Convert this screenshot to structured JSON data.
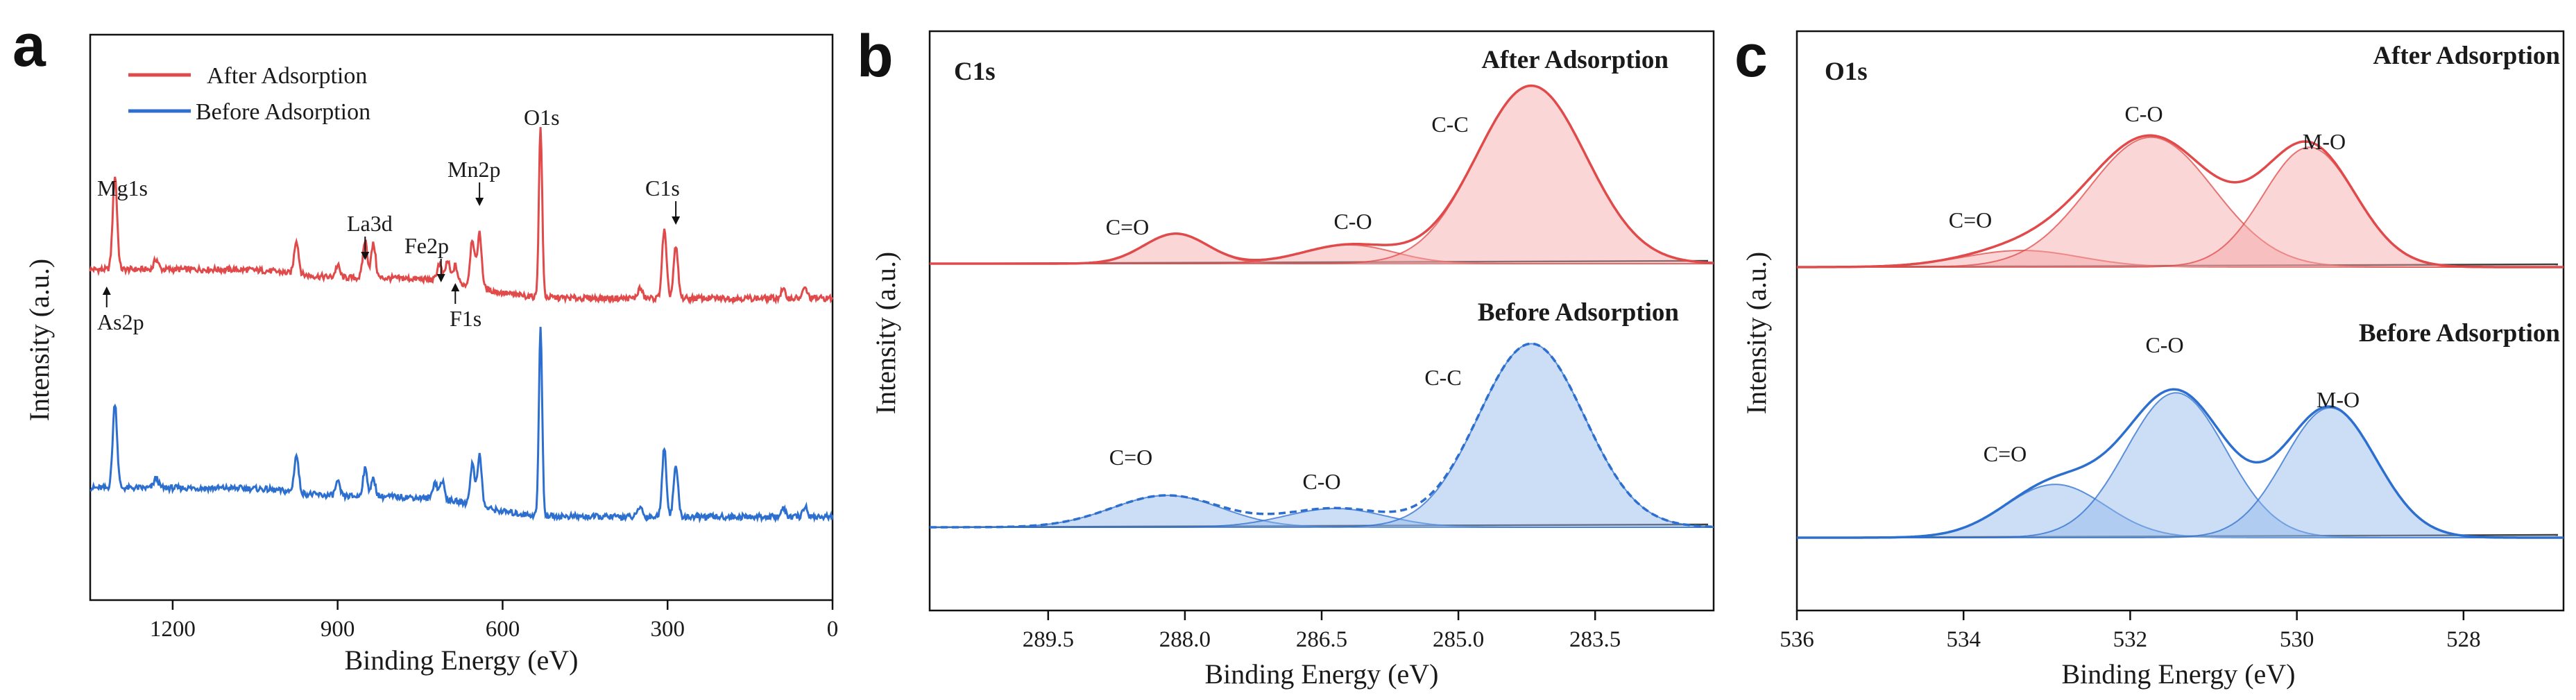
{
  "colors": {
    "after": "#e04a4a",
    "before": "#2d6fcf",
    "after_fill": "#f3a5a5",
    "before_fill": "#8db6ec",
    "background_line": "#404040",
    "axis": "#111111"
  },
  "chart_data": [
    {
      "type": "line",
      "panel": "a",
      "title": "",
      "xlabel": "Binding Energy (eV)",
      "ylabel": "Intensity (a.u.)",
      "xlim": [
        1350,
        0
      ],
      "x_ticks": [
        1200,
        900,
        600,
        300,
        0
      ],
      "x_tick_labels": [
        "1200",
        "900",
        "600",
        "300",
        "0"
      ],
      "legend": [
        {
          "label": "After  Adsorption",
          "color": "#e04a4a"
        },
        {
          "label": "Before Adsorption",
          "color": "#2d6fcf"
        }
      ],
      "series": [
        {
          "name": "After  Adsorption",
          "color": "#e04a4a",
          "baseline": 0.62,
          "peaks": [
            {
              "x": 1305,
              "h": 0.55
            },
            {
              "x": 1230,
              "h": 0.06
            },
            {
              "x": 975,
              "h": 0.2
            },
            {
              "x": 900,
              "h": 0.07
            },
            {
              "x": 850,
              "h": 0.22
            },
            {
              "x": 835,
              "h": 0.2
            },
            {
              "x": 715,
              "h": 0.1
            },
            {
              "x": 700,
              "h": 0.12
            },
            {
              "x": 686,
              "h": 0.1
            },
            {
              "x": 655,
              "h": 0.28
            },
            {
              "x": 642,
              "h": 0.32
            },
            {
              "x": 531,
              "h": 1.0
            },
            {
              "x": 350,
              "h": 0.06
            },
            {
              "x": 306,
              "h": 0.4
            },
            {
              "x": 285,
              "h": 0.3
            },
            {
              "x": 90,
              "h": 0.05
            },
            {
              "x": 50,
              "h": 0.06
            }
          ]
        },
        {
          "name": "Before Adsorption",
          "color": "#2d6fcf",
          "baseline": 0.0,
          "peaks": [
            {
              "x": 1305,
              "h": 0.5
            },
            {
              "x": 1230,
              "h": 0.06
            },
            {
              "x": 975,
              "h": 0.22
            },
            {
              "x": 900,
              "h": 0.08
            },
            {
              "x": 850,
              "h": 0.16
            },
            {
              "x": 835,
              "h": 0.1
            },
            {
              "x": 723,
              "h": 0.1
            },
            {
              "x": 710,
              "h": 0.11
            },
            {
              "x": 655,
              "h": 0.24
            },
            {
              "x": 642,
              "h": 0.3
            },
            {
              "x": 531,
              "h": 1.1
            },
            {
              "x": 350,
              "h": 0.06
            },
            {
              "x": 306,
              "h": 0.4
            },
            {
              "x": 285,
              "h": 0.3
            },
            {
              "x": 90,
              "h": 0.05
            },
            {
              "x": 50,
              "h": 0.06
            }
          ]
        }
      ],
      "annotations": [
        {
          "text": "Mg1s",
          "x": 1305
        },
        {
          "text": "As2p",
          "x": 1320
        },
        {
          "text": "La3d",
          "x": 850
        },
        {
          "text": "Fe2p",
          "x": 712
        },
        {
          "text": "Mn2p",
          "x": 642
        },
        {
          "text": "F1s",
          "x": 686
        },
        {
          "text": "O1s",
          "x": 531
        },
        {
          "text": "C1s",
          "x": 285
        }
      ]
    },
    {
      "type": "area",
      "panel": "b",
      "title": "C1s",
      "xlabel": "Binding Energy (eV)",
      "ylabel": "Intensity (a.u.)",
      "xlim": [
        290.8,
        282.2
      ],
      "x_ticks": [
        289.5,
        288.0,
        286.5,
        285.0,
        283.5
      ],
      "x_tick_labels": [
        "289.5",
        "288.0",
        "286.5",
        "285.0",
        "283.5"
      ],
      "series": [
        {
          "name": "After Adsorption",
          "color": "#e04a4a",
          "components": [
            {
              "label": "C=O",
              "center": 288.1,
              "height": 0.16,
              "width": 0.35
            },
            {
              "label": "C-O",
              "center": 286.2,
              "height": 0.1,
              "width": 0.5
            },
            {
              "label": "C-C",
              "center": 284.2,
              "height": 0.95,
              "width": 0.6
            }
          ]
        },
        {
          "name": "Before Adsorption",
          "color": "#2d6fcf",
          "components": [
            {
              "label": "C=O",
              "center": 288.2,
              "height": 0.17,
              "width": 0.6
            },
            {
              "label": "C-O",
              "center": 286.35,
              "height": 0.1,
              "width": 0.55
            },
            {
              "label": "C-C",
              "center": 284.2,
              "height": 0.98,
              "width": 0.58
            }
          ]
        }
      ]
    },
    {
      "type": "area",
      "panel": "c",
      "title": "O1s",
      "xlabel": "Binding Energy (eV)",
      "ylabel": "Intensity (a.u.)",
      "xlim": [
        536,
        526.8
      ],
      "x_ticks": [
        536,
        534,
        532,
        530,
        528
      ],
      "x_tick_labels": [
        "536",
        "534",
        "532",
        "530",
        "528"
      ],
      "series": [
        {
          "name": "After Adsorption",
          "color": "#e04a4a",
          "components": [
            {
              "label": "C=O",
              "center": 533.3,
              "height": 0.1,
              "width": 0.7
            },
            {
              "label": "C-O",
              "center": 531.75,
              "height": 0.78,
              "width": 0.75
            },
            {
              "label": "M-O",
              "center": 529.85,
              "height": 0.72,
              "width": 0.55
            }
          ]
        },
        {
          "name": "Before Adsorption",
          "color": "#2d6fcf",
          "components": [
            {
              "label": "C=O",
              "center": 532.9,
              "height": 0.32,
              "width": 0.6
            },
            {
              "label": "C-O",
              "center": 531.45,
              "height": 0.87,
              "width": 0.6
            },
            {
              "label": "M-O",
              "center": 529.6,
              "height": 0.78,
              "width": 0.55
            }
          ]
        }
      ]
    }
  ],
  "panels": {
    "a": {
      "letter": "a"
    },
    "b": {
      "letter": "b",
      "element": "C1s",
      "after_label": "After Adsorption",
      "before_label": "Before Adsorption"
    },
    "c": {
      "letter": "c",
      "element": "O1s",
      "after_label": "After Adsorption",
      "before_label": "Before Adsorption"
    }
  }
}
